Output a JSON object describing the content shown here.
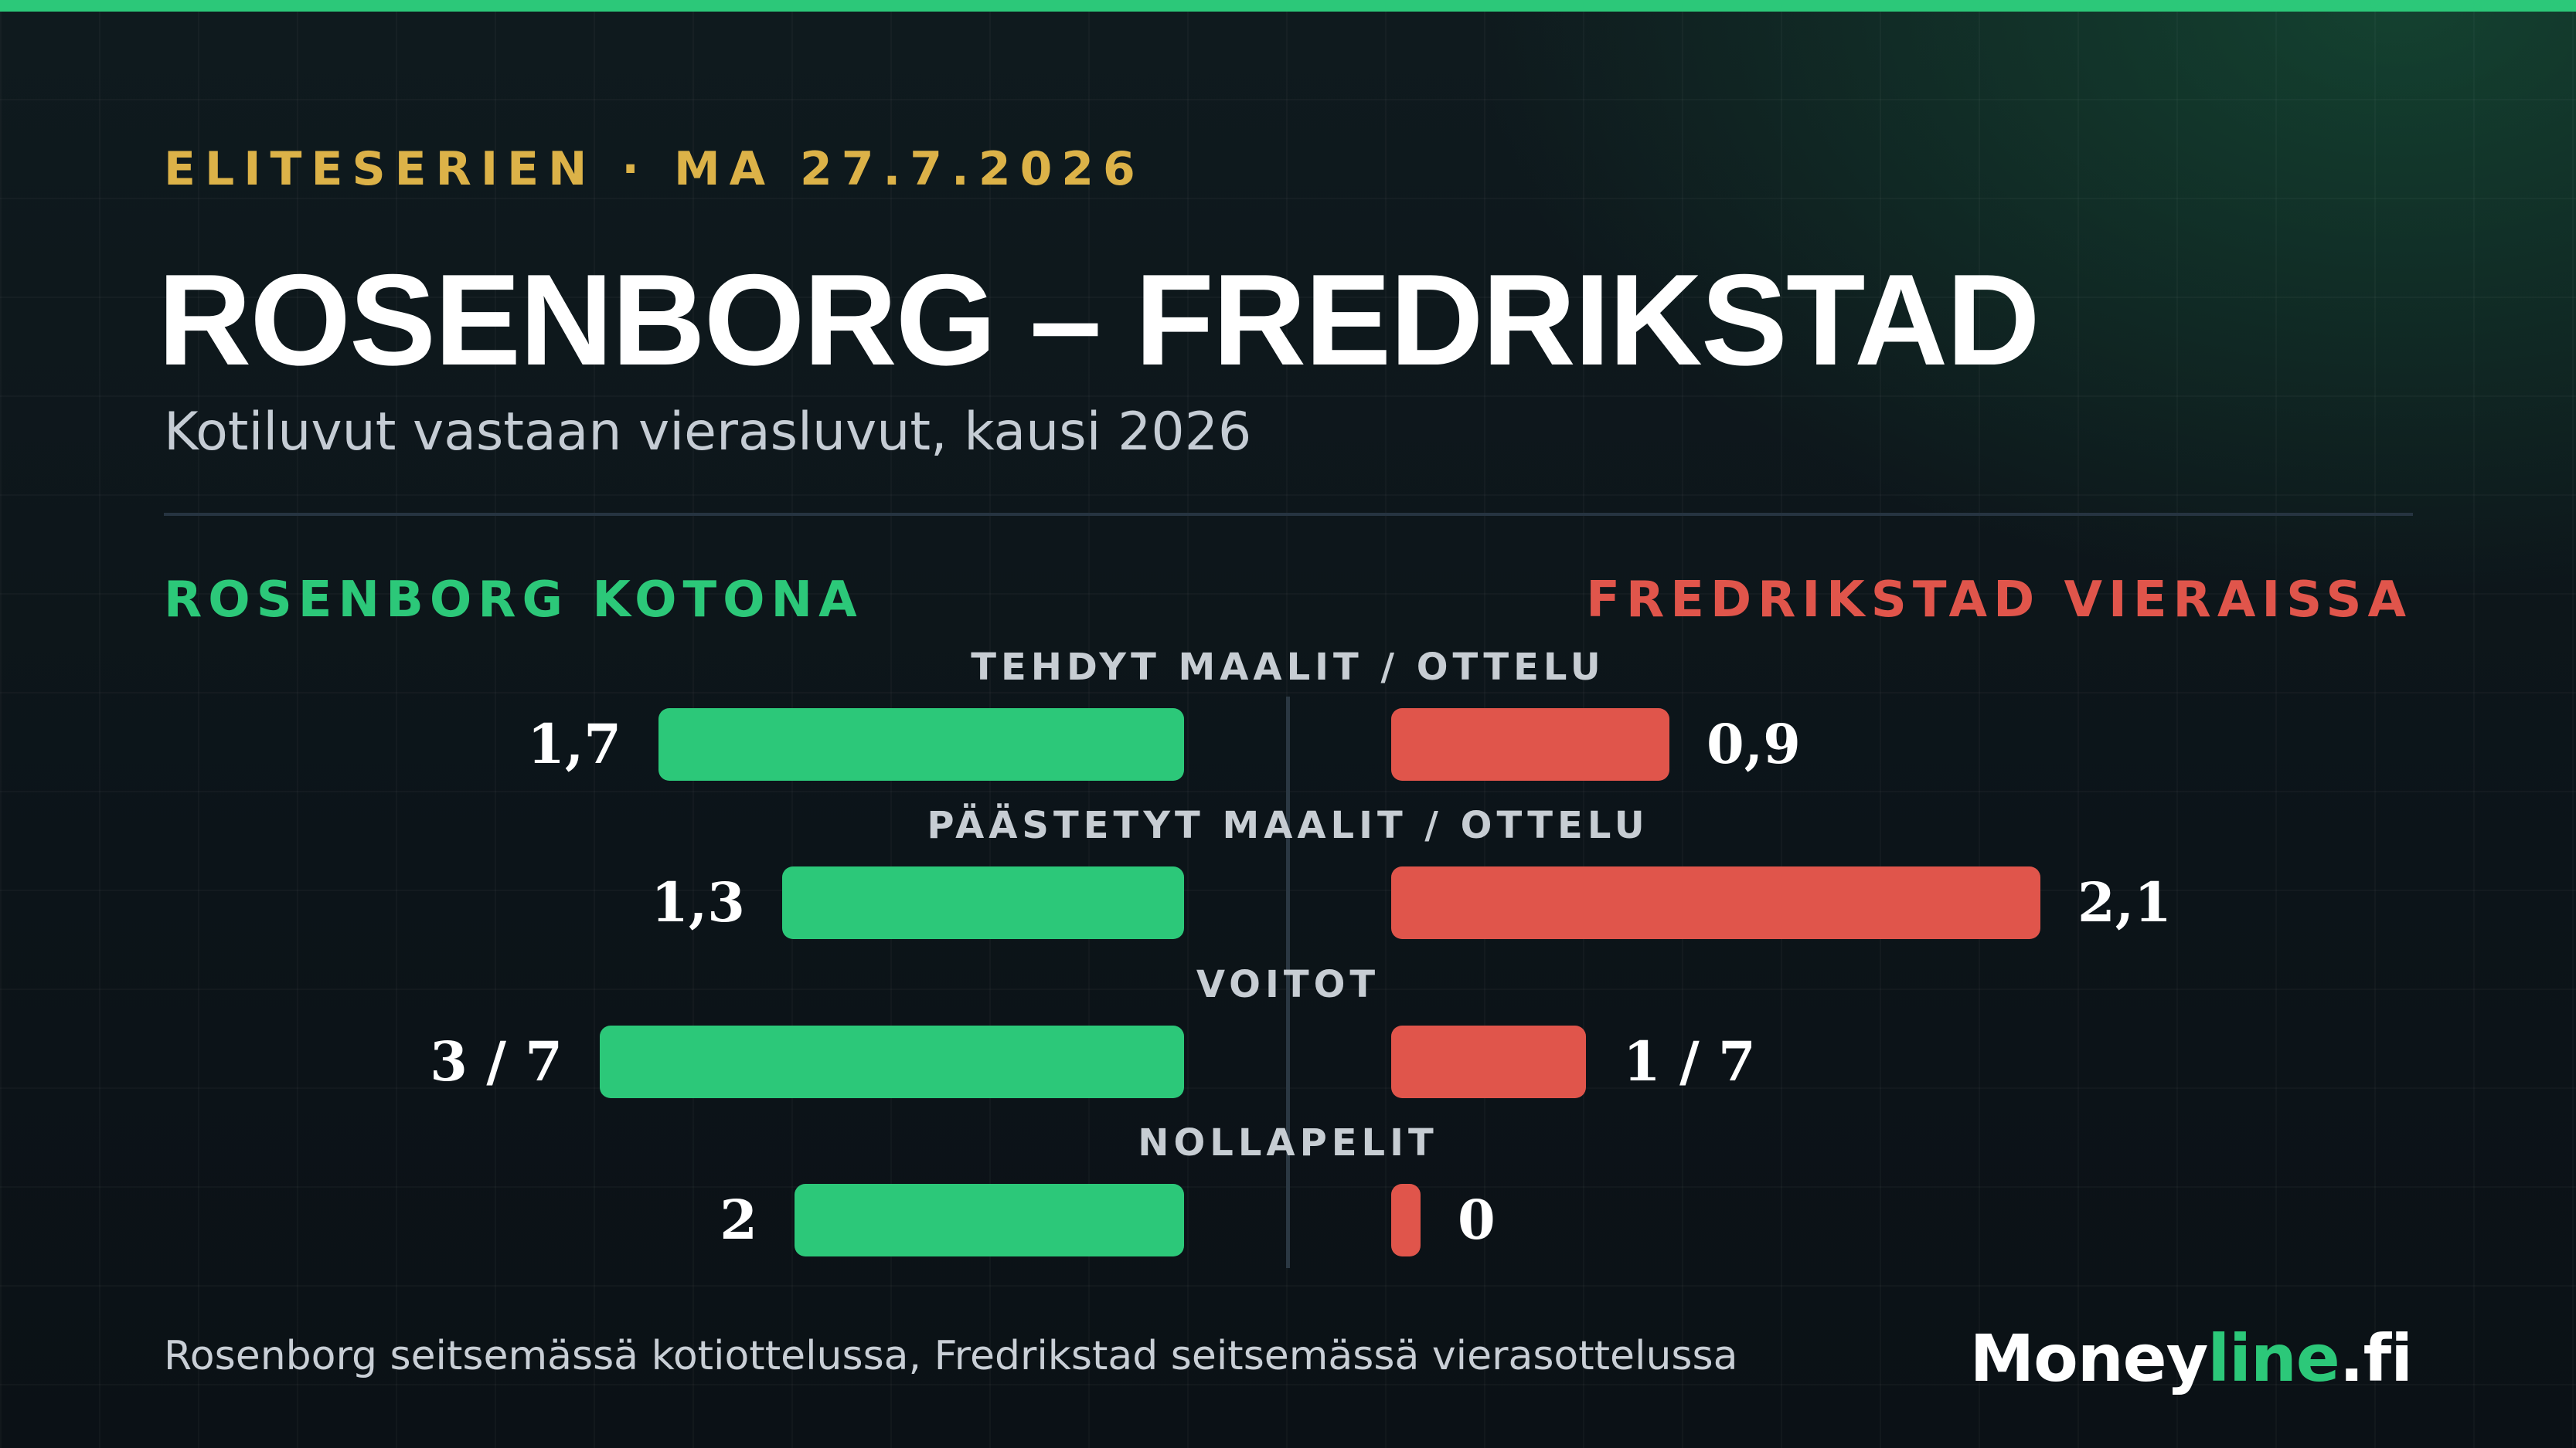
{
  "header": {
    "eyebrow": "ELITESERIEN · MA 27.7.2026",
    "title": "ROSENBORG – FREDRIKSTAD",
    "subtitle": "Kotiluvut vastaan vierasluvut, kausi 2026"
  },
  "sides": {
    "left": "ROSENBORG KOTONA",
    "right": "FREDRIKSTAD VIERAISSA"
  },
  "chart_data": {
    "type": "bar",
    "orientation": "diverging-horizontal",
    "categories": [
      "TEHDYT MAALIT / OTTELU",
      "PÄÄSTETYT MAALIT / OTTELU",
      "VOITOT",
      "NOLLAPELIT"
    ],
    "series": [
      {
        "name": "ROSENBORG KOTONA",
        "values": [
          1.7,
          1.3,
          3,
          2
        ],
        "labels": [
          "1,7",
          "1,3",
          "3 / 7",
          "2"
        ]
      },
      {
        "name": "FREDRIKSTAD VIERAISSA",
        "values": [
          0.9,
          2.1,
          1,
          0
        ],
        "labels": [
          "0,9",
          "2,1",
          "1 / 7",
          "0"
        ]
      }
    ],
    "colors": {
      "home": "#2cc879",
      "away": "#e0554b"
    }
  },
  "footer": {
    "note": "Rosenborg seitsemässä kotiottelussa, Fredrikstad seitsemässä vierasottelussa",
    "brand_main": "Money",
    "brand_accent": "line",
    "brand_tld": ".fi"
  },
  "colors": {
    "accent": "#2cc879",
    "away": "#e0554b",
    "eyebrow": "#dcb248",
    "background": "#0c1318"
  }
}
